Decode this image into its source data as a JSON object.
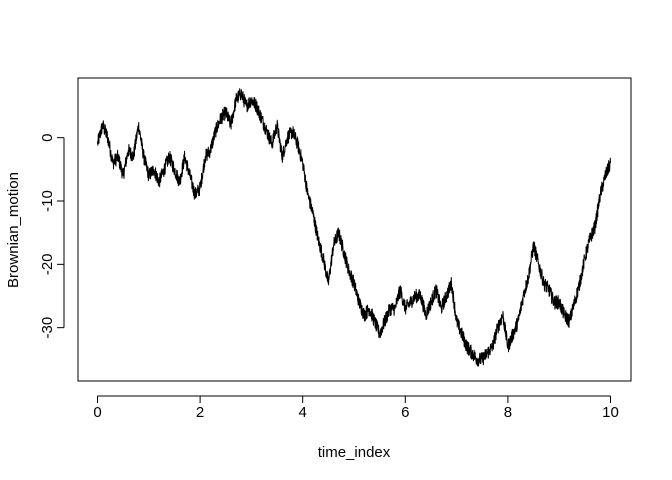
{
  "chart_data": {
    "type": "line",
    "title": "",
    "xlabel": "time_index",
    "ylabel": "Brownian_motion",
    "xlim": [
      0,
      10
    ],
    "ylim": [
      -37,
      8
    ],
    "xticks": [
      0,
      2,
      4,
      6,
      8,
      10
    ],
    "yticks": [
      0,
      -10,
      -20,
      -30
    ],
    "xtick_labels": [
      "0",
      "2",
      "4",
      "6",
      "8",
      "10"
    ],
    "ytick_labels": [
      "0",
      "-10",
      "-20",
      "-30"
    ],
    "grid": false,
    "legend": "none",
    "line_color": "#000000",
    "series": [
      {
        "x": [
          0,
          0.1,
          0.2,
          0.3,
          0.4,
          0.5,
          0.6,
          0.7,
          0.8,
          0.9,
          1.0,
          1.1,
          1.2,
          1.3,
          1.4,
          1.5,
          1.6,
          1.7,
          1.8,
          1.9,
          2.0,
          2.1,
          2.2,
          2.3,
          2.4,
          2.5,
          2.6,
          2.7,
          2.8,
          2.9,
          3.0,
          3.1,
          3.2,
          3.3,
          3.4,
          3.5,
          3.6,
          3.7,
          3.8,
          3.9,
          4.0,
          4.1,
          4.2,
          4.3,
          4.4,
          4.5,
          4.6,
          4.7,
          4.8,
          4.9,
          5.0,
          5.1,
          5.2,
          5.3,
          5.4,
          5.5,
          5.6,
          5.7,
          5.8,
          5.9,
          6.0,
          6.1,
          6.2,
          6.3,
          6.4,
          6.5,
          6.6,
          6.7,
          6.8,
          6.9,
          7.0,
          7.1,
          7.2,
          7.3,
          7.4,
          7.5,
          7.6,
          7.7,
          7.8,
          7.9,
          8.0,
          8.1,
          8.2,
          8.3,
          8.4,
          8.5,
          8.6,
          8.7,
          8.8,
          8.9,
          9.0,
          9.1,
          9.2,
          9.3,
          9.4,
          9.5,
          9.6,
          9.7,
          9.8,
          9.9,
          10.0
        ],
        "values": [
          -1,
          2,
          0,
          -4,
          -3,
          -6,
          -2,
          -3,
          2,
          -3,
          -6,
          -5,
          -7,
          -5,
          -3,
          -5,
          -7,
          -3,
          -6,
          -9,
          -8,
          -3,
          -2,
          1,
          3,
          4,
          2,
          6,
          7,
          5,
          6,
          5,
          3,
          1,
          -1,
          2,
          -3,
          0,
          1,
          -1,
          -4,
          -9,
          -12,
          -16,
          -19,
          -23,
          -17,
          -15,
          -18,
          -21,
          -23,
          -26,
          -28,
          -27,
          -29,
          -31,
          -29,
          -27,
          -27,
          -24,
          -27,
          -26,
          -25,
          -25,
          -28,
          -26,
          -24,
          -27,
          -25,
          -23,
          -29,
          -31,
          -33,
          -34,
          -35,
          -35,
          -34,
          -33,
          -30,
          -28,
          -33,
          -31,
          -29,
          -25,
          -22,
          -17,
          -20,
          -23,
          -24,
          -26,
          -26,
          -28,
          -29,
          -26,
          -23,
          -19,
          -16,
          -14,
          -9,
          -6,
          -4
        ]
      }
    ]
  }
}
